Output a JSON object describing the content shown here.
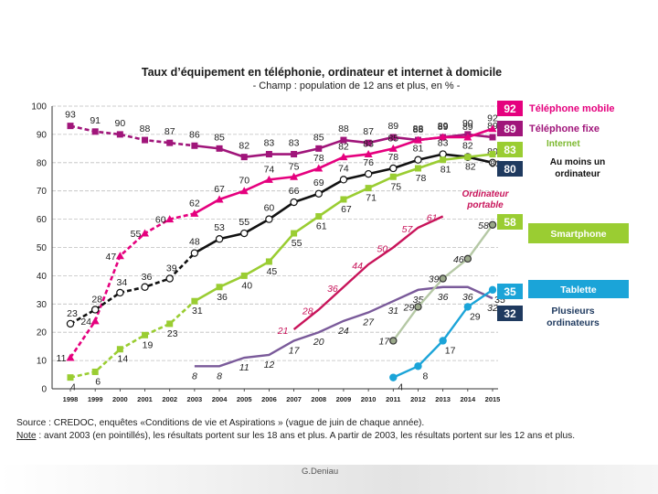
{
  "title": "Taux d’équipement en téléphonie, ordinateur et internet à domicile",
  "subtitle": "- Champ : population de 12 ans et plus, en % -",
  "source": {
    "line1": "Source : CREDOC, enquêtes «Conditions de vie et Aspirations » (vague de juin de chaque année).",
    "note_label": "Note",
    "note_text": " : avant 2003 (en pointillés), les résultats portent sur les 18 ans et plus. A partir de 2003, les résultats portent sur les 12 ans et plus."
  },
  "credit": "G.Deniau",
  "chart_data": {
    "type": "line",
    "title": "Taux d’équipement en téléphonie, ordinateur et internet à domicile",
    "subtitle": "- Champ : population de 12 ans et plus, en % -",
    "xlabel": "",
    "ylabel": "",
    "x": [
      1998,
      1999,
      2000,
      2001,
      2002,
      2003,
      2004,
      2005,
      2006,
      2007,
      2008,
      2009,
      2010,
      2011,
      2012,
      2013,
      2014,
      2015
    ],
    "yticks": [
      0,
      10,
      20,
      30,
      40,
      50,
      60,
      70,
      80,
      90,
      100
    ],
    "ylim": [
      0,
      100
    ],
    "grid": true,
    "series": [
      {
        "name": "Téléphone fixe",
        "color": "#a0157a",
        "marker": "square",
        "dashed_until": 2003,
        "points": [
          [
            1998,
            93
          ],
          [
            1999,
            91
          ],
          [
            2000,
            90
          ],
          [
            2001,
            88
          ],
          [
            2002,
            87
          ],
          [
            2003,
            86
          ],
          [
            2004,
            85
          ],
          [
            2005,
            82
          ],
          [
            2006,
            83
          ],
          [
            2007,
            83
          ],
          [
            2008,
            85
          ],
          [
            2009,
            88
          ],
          [
            2010,
            87
          ],
          [
            2011,
            89
          ],
          [
            2012,
            88
          ],
          [
            2013,
            89
          ],
          [
            2014,
            90
          ],
          [
            2015,
            89
          ]
        ],
        "labels": [
          "93",
          "91",
          "90",
          "88",
          "87",
          "86",
          "85",
          "82",
          "83",
          "83",
          "85",
          "88",
          "87",
          "89",
          "88",
          "89",
          "90",
          "89"
        ]
      },
      {
        "name": "Téléphone mobile",
        "color": "#e5007e",
        "marker": "triangle",
        "dashed_until": 2003,
        "points": [
          [
            1998,
            11
          ],
          [
            1999,
            24
          ],
          [
            2000,
            47
          ],
          [
            2001,
            55
          ],
          [
            2002,
            60
          ],
          [
            2003,
            62
          ],
          [
            2004,
            67
          ],
          [
            2005,
            70
          ],
          [
            2006,
            74
          ],
          [
            2007,
            75
          ],
          [
            2008,
            78
          ],
          [
            2009,
            82
          ],
          [
            2010,
            83
          ],
          [
            2011,
            85
          ],
          [
            2012,
            88
          ],
          [
            2013,
            89
          ],
          [
            2014,
            89
          ],
          [
            2015,
            92
          ]
        ],
        "labels": [
          "11",
          "24",
          "47",
          "55",
          "60",
          "62",
          "67",
          "70",
          "74",
          "75",
          "78",
          "82",
          "83",
          "85",
          "88",
          "89",
          "89",
          "92"
        ]
      },
      {
        "name": "Au moins un ordinateur",
        "color": "#111111",
        "marker": "circle",
        "dashed_until": 2003,
        "points": [
          [
            1998,
            23
          ],
          [
            1999,
            28
          ],
          [
            2000,
            34
          ],
          [
            2001,
            36
          ],
          [
            2002,
            39
          ],
          [
            2003,
            48
          ],
          [
            2004,
            53
          ],
          [
            2005,
            55
          ],
          [
            2006,
            60
          ],
          [
            2007,
            66
          ],
          [
            2008,
            69
          ],
          [
            2009,
            74
          ],
          [
            2010,
            76
          ],
          [
            2011,
            78
          ],
          [
            2012,
            81
          ],
          [
            2013,
            83
          ],
          [
            2014,
            82
          ],
          [
            2015,
            80
          ]
        ],
        "labels": [
          "23",
          "28",
          "34",
          "36",
          "39",
          "48",
          "53",
          "55",
          "60",
          "66",
          "69",
          "74",
          "76",
          "78",
          "81",
          "83",
          "82",
          "80"
        ]
      },
      {
        "name": "Internet",
        "color": "#9acd32",
        "marker": "square",
        "dashed_until": 2003,
        "points": [
          [
            1998,
            4
          ],
          [
            1999,
            6
          ],
          [
            2000,
            14
          ],
          [
            2001,
            19
          ],
          [
            2002,
            23
          ],
          [
            2003,
            31
          ],
          [
            2004,
            36
          ],
          [
            2005,
            40
          ],
          [
            2006,
            45
          ],
          [
            2007,
            55
          ],
          [
            2008,
            61
          ],
          [
            2009,
            67
          ],
          [
            2010,
            71
          ],
          [
            2011,
            75
          ],
          [
            2012,
            78
          ],
          [
            2013,
            81
          ],
          [
            2014,
            82
          ],
          [
            2015,
            83
          ]
        ],
        "labels": [
          "4",
          "6",
          "14",
          "19",
          "23",
          "31",
          "36",
          "40",
          "45",
          "55",
          "61",
          "67",
          "71",
          "75",
          "78",
          "81",
          "82",
          "83"
        ]
      },
      {
        "name": "Ordinateur portable",
        "color": "#c8145a",
        "marker": "none",
        "dashed_until": null,
        "points": [
          [
            2007,
            21
          ],
          [
            2008,
            28
          ],
          [
            2009,
            36
          ],
          [
            2010,
            44
          ],
          [
            2011,
            50
          ],
          [
            2012,
            57
          ],
          [
            2013,
            61
          ]
        ],
        "labels": [
          "21",
          "28",
          "36",
          "44",
          "50",
          "57",
          "61"
        ]
      },
      {
        "name": "Plusieurs ordinateurs",
        "color": "#7a5a9a",
        "marker": "none",
        "dashed_until": null,
        "points": [
          [
            2003,
            8
          ],
          [
            2004,
            8
          ],
          [
            2005,
            11
          ],
          [
            2006,
            12
          ],
          [
            2007,
            17
          ],
          [
            2008,
            20
          ],
          [
            2009,
            24
          ],
          [
            2010,
            27
          ],
          [
            2011,
            31
          ],
          [
            2012,
            35
          ],
          [
            2013,
            36
          ],
          [
            2014,
            36
          ],
          [
            2015,
            32
          ]
        ],
        "labels": [
          "8",
          "8",
          "11",
          "12",
          "17",
          "20",
          "24",
          "27",
          "31",
          "35",
          "36",
          "36",
          "32"
        ]
      },
      {
        "name": "Smartphone",
        "color": "#b5c8a5",
        "marker": "circle",
        "dashed_until": null,
        "points": [
          [
            2011,
            17
          ],
          [
            2012,
            29
          ],
          [
            2013,
            39
          ],
          [
            2014,
            46
          ],
          [
            2015,
            58
          ]
        ],
        "labels": [
          "17",
          "29",
          "39",
          "46",
          "58"
        ]
      },
      {
        "name": "Tablette",
        "color": "#1ba4d8",
        "marker": "circle",
        "dashed_until": null,
        "points": [
          [
            2011,
            4
          ],
          [
            2012,
            8
          ],
          [
            2013,
            17
          ],
          [
            2014,
            29
          ],
          [
            2015,
            35
          ]
        ],
        "labels": [
          "4",
          "8",
          "17",
          "29",
          "35"
        ]
      }
    ],
    "legend": [
      {
        "value": "92",
        "label": "Téléphone mobile",
        "color": "#e5007e"
      },
      {
        "value": "89",
        "label": "Téléphone fixe",
        "color": "#a0157a"
      },
      {
        "value": "83",
        "label": "Internet",
        "color": "#9acd32"
      },
      {
        "value": "80",
        "label": "Au moins un ordinateur",
        "color": "#1f3a5f"
      },
      {
        "value": "58",
        "label": "Smartphone",
        "color": "#9acd32"
      },
      {
        "value": "35",
        "label": "Tablette",
        "color": "#1ba4d8"
      },
      {
        "value": "32",
        "label": "Plusieurs ordinateurs",
        "color": "#1f3a5f"
      }
    ],
    "annotations": [
      "Ordinateur portable"
    ]
  },
  "colors": {
    "grid": "#bfbfbf",
    "axis": "#333333"
  }
}
